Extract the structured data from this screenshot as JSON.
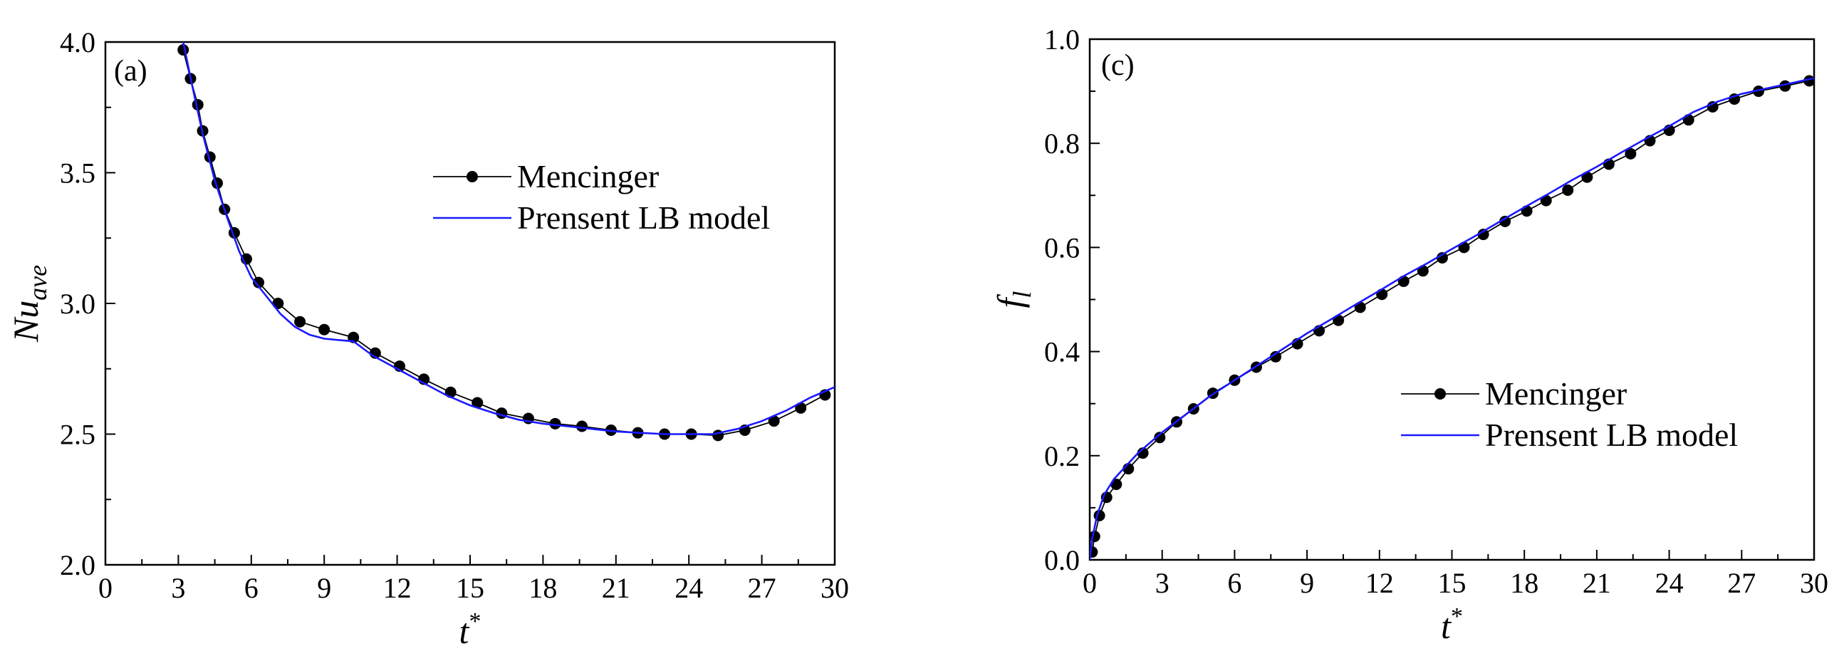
{
  "chart_data": [
    {
      "type": "line",
      "panel_label": "(a)",
      "xlabel": "t",
      "xlabel_sup": "*",
      "ylabel": "Nu",
      "ylabel_sub": "ave",
      "xlim": [
        0,
        30
      ],
      "ylim": [
        2.0,
        4.0
      ],
      "xticks": [
        "0",
        "3",
        "6",
        "9",
        "12",
        "15",
        "18",
        "21",
        "24",
        "27",
        "30"
      ],
      "yticks": [
        "2.0",
        "2.5",
        "3.0",
        "3.5",
        "4.0"
      ],
      "grid": false,
      "legend_position": "top-right",
      "series": [
        {
          "name": "Mencinger",
          "style": "line-markers",
          "color": "#000000",
          "x": [
            3.2,
            3.5,
            3.8,
            4.0,
            4.3,
            4.6,
            4.9,
            5.3,
            5.8,
            6.3,
            7.1,
            8.0,
            9.0,
            10.2,
            11.1,
            12.1,
            13.1,
            14.2,
            15.3,
            16.3,
            17.4,
            18.5,
            19.6,
            20.8,
            21.9,
            23.0,
            24.1,
            25.2,
            26.3,
            27.5,
            28.6,
            29.6
          ],
          "y": [
            3.97,
            3.86,
            3.76,
            3.66,
            3.56,
            3.46,
            3.36,
            3.27,
            3.17,
            3.08,
            3.0,
            2.93,
            2.9,
            2.87,
            2.81,
            2.76,
            2.71,
            2.66,
            2.62,
            2.58,
            2.56,
            2.54,
            2.53,
            2.515,
            2.505,
            2.5,
            2.5,
            2.495,
            2.515,
            2.55,
            2.6,
            2.65
          ]
        },
        {
          "name": "Prensent LB model",
          "style": "line",
          "color": "#1a1aff",
          "x": [
            3.2,
            3.6,
            4.0,
            4.5,
            5.0,
            5.5,
            6.0,
            6.6,
            7.2,
            7.8,
            8.4,
            9.0,
            9.6,
            10.2,
            11.0,
            12.0,
            13.0,
            14.0,
            15.0,
            16.0,
            17.0,
            18.0,
            19.0,
            20.0,
            21.0,
            22.0,
            23.0,
            24.0,
            25.0,
            26.0,
            27.0,
            28.0,
            29.0,
            30.0
          ],
          "y": [
            4.0,
            3.82,
            3.65,
            3.47,
            3.33,
            3.2,
            3.1,
            3.03,
            2.96,
            2.91,
            2.88,
            2.865,
            2.86,
            2.855,
            2.8,
            2.75,
            2.7,
            2.65,
            2.61,
            2.58,
            2.555,
            2.54,
            2.53,
            2.52,
            2.51,
            2.505,
            2.5,
            2.5,
            2.5,
            2.52,
            2.55,
            2.59,
            2.64,
            2.68
          ]
        }
      ]
    },
    {
      "type": "line",
      "panel_label": "(c)",
      "xlabel": "t",
      "xlabel_sup": "*",
      "ylabel": "f",
      "ylabel_sub": "l",
      "xlim": [
        0,
        30
      ],
      "ylim": [
        0.0,
        1.0
      ],
      "xticks": [
        "0",
        "3",
        "6",
        "9",
        "12",
        "15",
        "18",
        "21",
        "24",
        "27",
        "30"
      ],
      "yticks": [
        "0.0",
        "0.2",
        "0.4",
        "0.6",
        "0.8",
        "1.0"
      ],
      "grid": false,
      "legend_position": "bottom-right",
      "series": [
        {
          "name": "Mencinger",
          "style": "line-markers",
          "color": "#000000",
          "x": [
            0.1,
            0.2,
            0.4,
            0.7,
            1.1,
            1.6,
            2.2,
            2.9,
            3.6,
            4.3,
            5.1,
            6.0,
            6.9,
            7.7,
            8.6,
            9.5,
            10.3,
            11.2,
            12.1,
            13.0,
            13.8,
            14.6,
            15.5,
            16.3,
            17.2,
            18.1,
            18.9,
            19.8,
            20.6,
            21.5,
            22.4,
            23.2,
            24.0,
            24.8,
            25.8,
            26.7,
            27.7,
            28.8,
            29.8
          ],
          "y": [
            0.015,
            0.045,
            0.085,
            0.12,
            0.145,
            0.175,
            0.205,
            0.235,
            0.265,
            0.29,
            0.32,
            0.345,
            0.37,
            0.39,
            0.415,
            0.44,
            0.46,
            0.485,
            0.51,
            0.535,
            0.555,
            0.58,
            0.6,
            0.625,
            0.65,
            0.67,
            0.69,
            0.71,
            0.735,
            0.76,
            0.78,
            0.805,
            0.825,
            0.845,
            0.87,
            0.885,
            0.9,
            0.91,
            0.92
          ]
        },
        {
          "name": "Prensent LB model",
          "style": "line",
          "color": "#1a1aff",
          "x": [
            0.0,
            0.1,
            0.3,
            0.6,
            1.0,
            1.5,
            2.0,
            3.0,
            4.0,
            5.0,
            6.0,
            7.0,
            8.0,
            9.0,
            10.0,
            11.0,
            12.0,
            13.0,
            14.0,
            15.0,
            16.0,
            17.0,
            18.0,
            19.0,
            20.0,
            21.0,
            22.0,
            23.0,
            24.0,
            25.0,
            26.0,
            27.0,
            28.0,
            29.0,
            30.0
          ],
          "y": [
            0.0,
            0.04,
            0.085,
            0.125,
            0.155,
            0.18,
            0.205,
            0.245,
            0.28,
            0.315,
            0.345,
            0.375,
            0.405,
            0.435,
            0.462,
            0.49,
            0.517,
            0.545,
            0.57,
            0.597,
            0.623,
            0.65,
            0.677,
            0.703,
            0.73,
            0.755,
            0.782,
            0.808,
            0.833,
            0.86,
            0.88,
            0.895,
            0.905,
            0.915,
            0.925
          ]
        }
      ]
    }
  ]
}
